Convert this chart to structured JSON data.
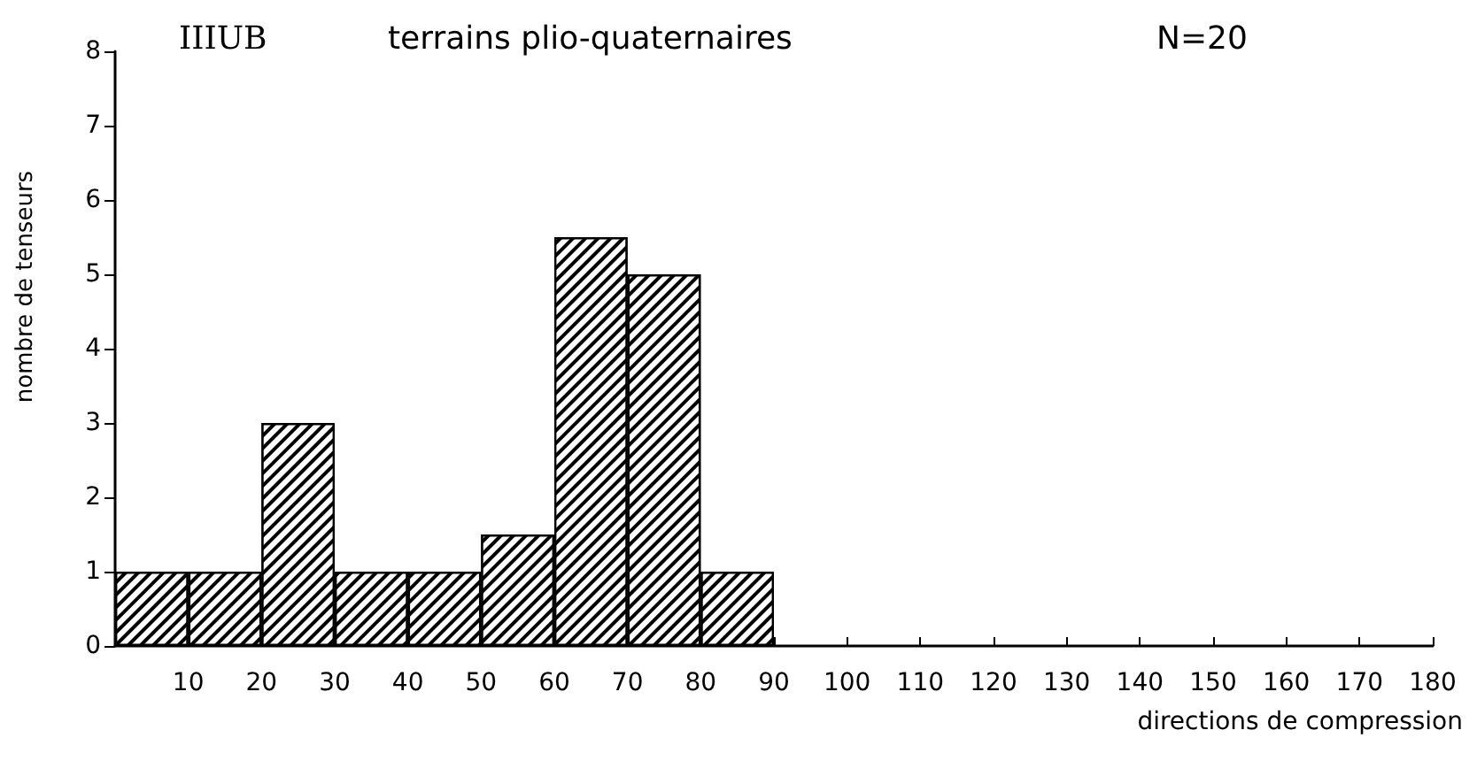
{
  "chart_data": {
    "type": "histogram",
    "title": "IIIUB",
    "subtitle": "terrains plio-quaternaires",
    "annotations": [
      "N=20"
    ],
    "xlabel": "directions de compression",
    "ylabel": "nombre de tenseurs",
    "bins": [
      0,
      10,
      20,
      30,
      40,
      50,
      60,
      70,
      80,
      90
    ],
    "values": [
      1,
      1,
      3,
      1,
      1,
      1.5,
      5.5,
      5,
      1
    ],
    "color": "#000000",
    "xlim": [
      0,
      180
    ],
    "xticks": [
      10,
      20,
      30,
      40,
      50,
      60,
      70,
      80,
      90,
      100,
      110,
      120,
      130,
      140,
      150,
      160,
      170,
      180
    ],
    "ylim": [
      0,
      8
    ],
    "yticks": [
      0,
      1,
      2,
      3,
      4,
      5,
      6,
      7,
      8
    ],
    "grid": false
  }
}
